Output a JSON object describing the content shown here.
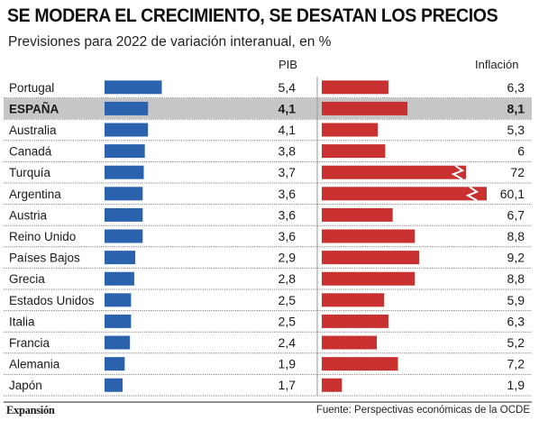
{
  "header": {
    "title": "SE MODERA EL CRECIMIENTO, SE DESATAN LOS PRECIOS",
    "subtitle": "Previsiones para 2022 de variación interanual, en %"
  },
  "footer": {
    "logo": "Expansión",
    "source": "Fuente: Perspectivas económicas de la OCDE"
  },
  "colors": {
    "pib_bar": "#2a62ad",
    "inflacion_bar": "#c93030",
    "highlight_row": "#c6c6c6",
    "row_divider": "#7d7d7d"
  },
  "chart_data": {
    "type": "bar",
    "title": "SE MODERA EL CRECIMIENTO, SE DESATAN LOS PRECIOS",
    "subtitle": "Previsiones para 2022 de variación interanual, en %",
    "highlight": "ESPAÑA",
    "categories": [
      "Portugal",
      "ESPAÑA",
      "Australia",
      "Canadá",
      "Turquía",
      "Argentina",
      "Austria",
      "Reino Unido",
      "Países Bajos",
      "Grecia",
      "Estados Unidos",
      "Italia",
      "Francia",
      "Alemania",
      "Japón"
    ],
    "series": [
      {
        "name": "PIB",
        "values": [
          5.4,
          4.1,
          4.1,
          3.8,
          3.7,
          3.6,
          3.6,
          3.6,
          2.9,
          2.8,
          2.5,
          2.5,
          2.4,
          1.9,
          1.7
        ],
        "labels": [
          "5,4",
          "4,1",
          "4,1",
          "3,8",
          "3,7",
          "3,6",
          "3,6",
          "3,6",
          "2,9",
          "2,8",
          "2,5",
          "2,5",
          "2,4",
          "1,9",
          "1,7"
        ],
        "color": "#2a62ad",
        "axis_max": 6
      },
      {
        "name": "Inflación",
        "values": [
          6.3,
          8.1,
          5.3,
          6,
          72,
          60.1,
          6.7,
          8.8,
          9.2,
          8.8,
          5.9,
          6.3,
          5.2,
          7.2,
          1.9
        ],
        "labels": [
          "6,3",
          "8,1",
          "5,3",
          "6",
          "72",
          "60,1",
          "6,7",
          "8,8",
          "9,2",
          "8,8",
          "5,9",
          "6,3",
          "5,2",
          "7,2",
          "1,9"
        ],
        "color": "#c93030",
        "axis_max": 10,
        "broken_bars": [
          "Turquía",
          "Argentina"
        ]
      }
    ]
  }
}
